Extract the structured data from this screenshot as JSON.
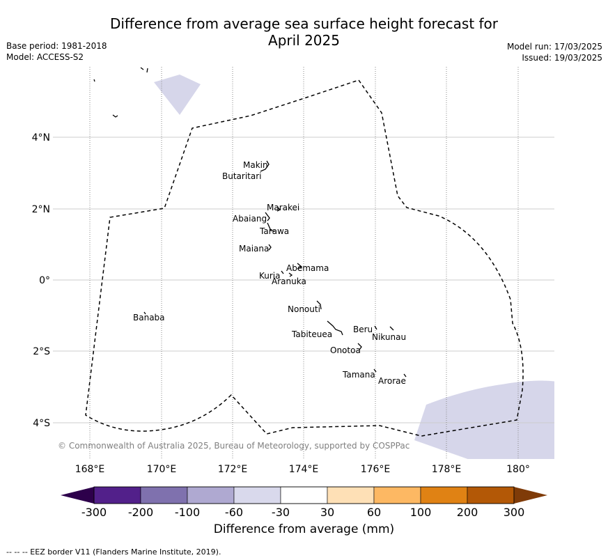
{
  "title_line1": "Difference from average sea surface height forecast for",
  "title_line2": "April 2025",
  "base_period": "Base period: 1981-2018",
  "model": "Model: ACCESS-S2",
  "model_run": "Model run: 17/03/2025",
  "issued": "Issued: 19/03/2025",
  "copyright": "© Commonwealth of Australia 2025, Bureau of Meteorology, supported by COSPPac",
  "x_ticks": [
    "168°E",
    "170°E",
    "172°E",
    "174°E",
    "176°E",
    "178°E",
    "180°"
  ],
  "y_ticks": [
    "4°N",
    "2°N",
    "0°",
    "2°S",
    "4°S"
  ],
  "islands": [
    "Makin",
    "Butaritari",
    "Marakei",
    "Abaiang",
    "Tarawa",
    "Maiana",
    "Abemama",
    "Kuria",
    "Aranuka",
    "Banaba",
    "Nonouti",
    "Beru",
    "Nikunau",
    "Tabiteuea",
    "Onotoa",
    "Tamana",
    "Arorae"
  ],
  "colorbar": {
    "ticks": [
      "-300",
      "-200",
      "-100",
      "-60",
      "-30",
      "30",
      "60",
      "100",
      "200",
      "300"
    ],
    "colors": [
      "#52208a",
      "#7f71ae",
      "#afa9d1",
      "#d9d9ec",
      "#ffffff",
      "#fee0b6",
      "#fdb863",
      "#e08214",
      "#b35806"
    ],
    "under_color": "#2d004b",
    "over_color": "#7f3b08",
    "label": "Difference from average (mm)"
  },
  "footer": "--  --  -- EEZ border V11 (Flanders Marine Institute, 2019)."
}
